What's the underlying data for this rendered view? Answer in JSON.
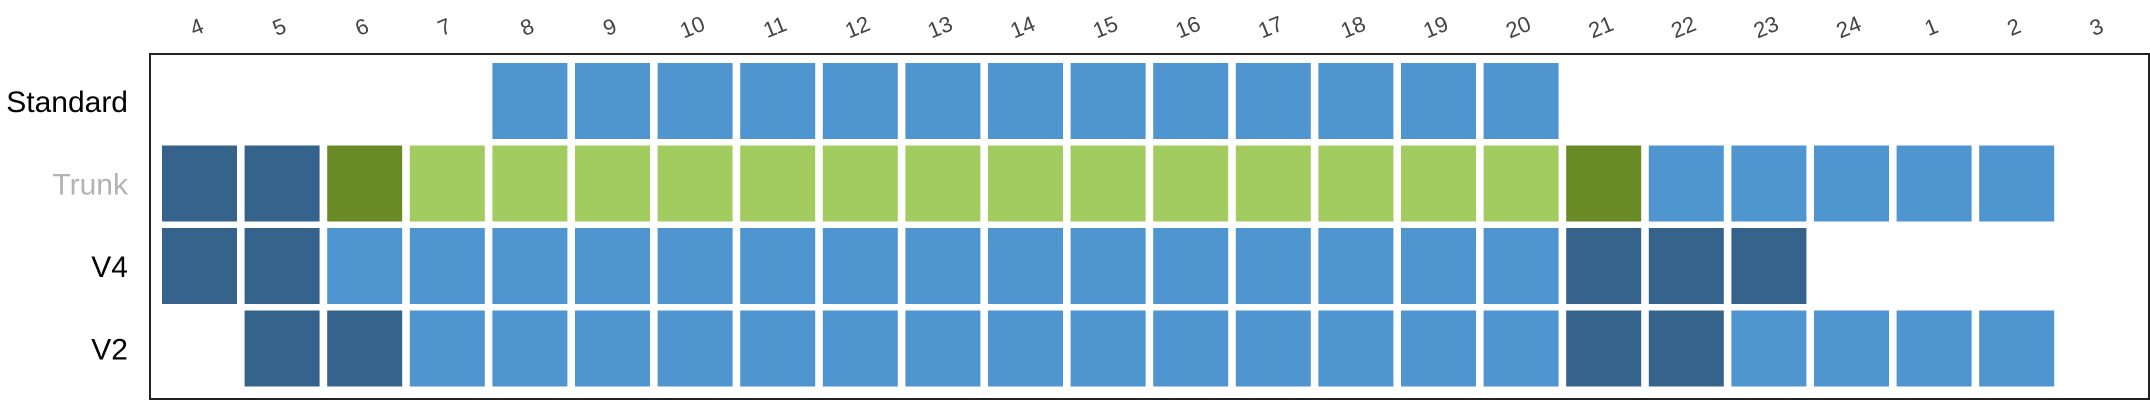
{
  "chart_data": {
    "type": "heatmap",
    "title": "",
    "x_labels": [
      "4",
      "5",
      "6",
      "7",
      "8",
      "9",
      "10",
      "11",
      "12",
      "13",
      "14",
      "15",
      "16",
      "17",
      "18",
      "19",
      "20",
      "21",
      "22",
      "23",
      "24",
      "1",
      "2",
      "3"
    ],
    "rows": [
      {
        "label": "Standard",
        "label_color": "#000000",
        "cells": [
          null,
          null,
          null,
          null,
          "mid",
          "mid",
          "mid",
          "mid",
          "mid",
          "mid",
          "mid",
          "mid",
          "mid",
          "mid",
          "mid",
          "mid",
          "mid",
          null,
          null,
          null,
          null,
          null,
          null,
          null
        ]
      },
      {
        "label": "Trunk",
        "label_color": "#b3b3b3",
        "cells": [
          "dark",
          "dark",
          "olive",
          "lightgreen",
          "lightgreen",
          "lightgreen",
          "lightgreen",
          "lightgreen",
          "lightgreen",
          "lightgreen",
          "lightgreen",
          "lightgreen",
          "lightgreen",
          "lightgreen",
          "lightgreen",
          "lightgreen",
          "lightgreen",
          "olive",
          "mid",
          "mid",
          "mid",
          "mid",
          "mid",
          null
        ]
      },
      {
        "label": "V4",
        "label_color": "#000000",
        "cells": [
          "dark",
          "dark",
          "mid",
          "mid",
          "mid",
          "mid",
          "mid",
          "mid",
          "mid",
          "mid",
          "mid",
          "mid",
          "mid",
          "mid",
          "mid",
          "mid",
          "mid",
          "dark",
          "dark",
          "dark",
          null,
          null,
          null,
          null
        ]
      },
      {
        "label": "V2",
        "label_color": "#000000",
        "cells": [
          null,
          "dark",
          "dark",
          "mid",
          "mid",
          "mid",
          "mid",
          "mid",
          "mid",
          "mid",
          "mid",
          "mid",
          "mid",
          "mid",
          "mid",
          "mid",
          "mid",
          "dark",
          "dark",
          "mid",
          "mid",
          "mid",
          "mid",
          null
        ]
      }
    ],
    "colors": {
      "mid": "#4f95d0",
      "dark": "#35638b",
      "lightgreen": "#a2cc5f",
      "olive": "#6a8a26"
    },
    "grid": false,
    "legend": "none"
  }
}
